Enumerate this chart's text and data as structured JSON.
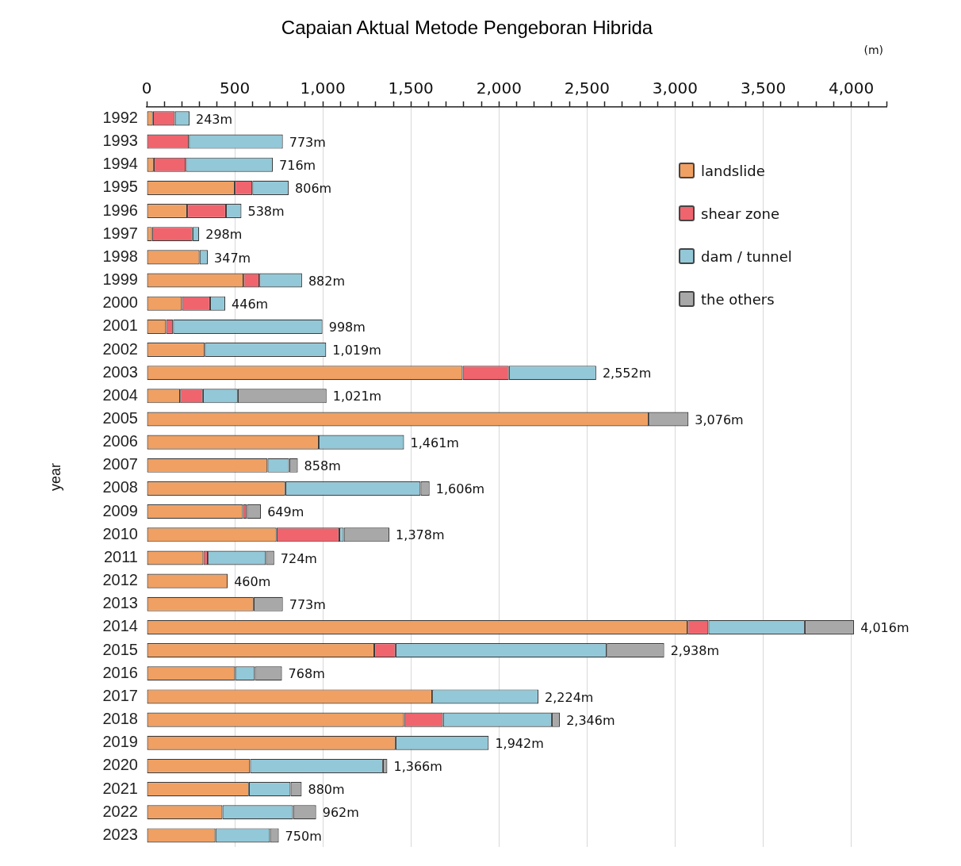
{
  "chart_data": {
    "type": "bar",
    "orientation": "horizontal",
    "stacked": true,
    "title": "Capaian Aktual Metode Pengeboran Hibrida",
    "xlabel": "(m)",
    "ylabel": "year",
    "categories": [
      "1992",
      "1993",
      "1994",
      "1995",
      "1996",
      "1997",
      "1998",
      "1999",
      "2000",
      "2001",
      "2002",
      "2003",
      "2004",
      "2005",
      "2006",
      "2007",
      "2008",
      "2009",
      "2010",
      "2011",
      "2012",
      "2013",
      "2014",
      "2015",
      "2016",
      "2017",
      "2018",
      "2019",
      "2020",
      "2021",
      "2022",
      "2023"
    ],
    "series": [
      {
        "name": "landslide",
        "color": "#f0a062",
        "values": [
          35,
          0,
          40,
          500,
          230,
          30,
          300,
          550,
          200,
          110,
          330,
          1794,
          190,
          2850,
          977,
          686,
          787,
          547,
          737,
          322,
          460,
          607,
          3071,
          1292,
          502,
          1621,
          1461,
          1413,
          587,
          580,
          430,
          390
        ]
      },
      {
        "name": "shear zone",
        "color": "#f0646e",
        "values": [
          125,
          240,
          182,
          100,
          220,
          230,
          0,
          90,
          160,
          40,
          0,
          262,
          129,
          0,
          0,
          0,
          0,
          22,
          357,
          25,
          0,
          0,
          118,
          121,
          0,
          0,
          221,
          0,
          0,
          0,
          0,
          0
        ]
      },
      {
        "name": "dam / tunnel",
        "color": "#92c8d8",
        "values": [
          83,
          533,
          494,
          206,
          88,
          38,
          47,
          242,
          86,
          848,
          689,
          496,
          198,
          0,
          484,
          123,
          768,
          0,
          25,
          330,
          0,
          0,
          547,
          1199,
          112,
          603,
          618,
          529,
          754,
          237,
          401,
          310
        ]
      },
      {
        "name": "the others",
        "color": "#a8a8a8",
        "values": [
          0,
          0,
          0,
          0,
          0,
          0,
          0,
          0,
          0,
          0,
          0,
          0,
          504,
          226,
          0,
          49,
          51,
          80,
          259,
          47,
          0,
          166,
          280,
          326,
          154,
          0,
          46,
          0,
          25,
          63,
          131,
          50
        ]
      }
    ],
    "totals": [
      "243m",
      "773m",
      "716m",
      "806m",
      "538m",
      "298m",
      "347m",
      "882m",
      "446m",
      "998m",
      "1,019m",
      "2,552m",
      "1,021m",
      "3,076m",
      "1,461m",
      "858m",
      "1,606m",
      "649m",
      "1,378m",
      "724m",
      "460m",
      "773m",
      "4,016m",
      "2,938m",
      "768m",
      "2,224m",
      "2,346m",
      "1,942m",
      "1,366m",
      "880m",
      "962m",
      "750m"
    ],
    "xlim": [
      0,
      4200
    ],
    "xticks": [
      0,
      {
        "value": 100,
        "label": null
      },
      {
        "value": 200,
        "label": null
      },
      {
        "value": 300,
        "label": null
      },
      {
        "value": 400,
        "label": null
      },
      500,
      {
        "value": 600,
        "label": null
      },
      {
        "value": 700,
        "label": null
      },
      {
        "value": 800,
        "label": null
      },
      {
        "value": 900,
        "label": null
      },
      {
        "value": 1000,
        "label": "1,000"
      },
      {
        "value": 1100,
        "label": null
      },
      {
        "value": 1200,
        "label": null
      },
      {
        "value": 1300,
        "label": null
      },
      {
        "value": 1400,
        "label": null
      },
      {
        "value": 1500,
        "label": "1,500"
      },
      {
        "value": 1600,
        "label": null
      },
      {
        "value": 1700,
        "label": null
      },
      {
        "value": 1800,
        "label": null
      },
      {
        "value": 1900,
        "label": null
      },
      {
        "value": 2000,
        "label": "2,000"
      },
      {
        "value": 2100,
        "label": null
      },
      {
        "value": 2200,
        "label": null
      },
      {
        "value": 2300,
        "label": null
      },
      {
        "value": 2400,
        "label": null
      },
      {
        "value": 2500,
        "label": "2,500"
      },
      {
        "value": 2600,
        "label": null
      },
      {
        "value": 2700,
        "label": null
      },
      {
        "value": 2800,
        "label": null
      },
      {
        "value": 2900,
        "label": null
      },
      {
        "value": 3000,
        "label": "3,000"
      },
      {
        "value": 3100,
        "label": null
      },
      {
        "value": 3200,
        "label": null
      },
      {
        "value": 3300,
        "label": null
      },
      {
        "value": 3400,
        "label": null
      },
      {
        "value": 3500,
        "label": "3,500"
      },
      {
        "value": 3600,
        "label": null
      },
      {
        "value": 3700,
        "label": null
      },
      {
        "value": 3800,
        "label": null
      },
      {
        "value": 3900,
        "label": null
      },
      {
        "value": 4000,
        "label": "4,000"
      },
      {
        "value": 4100,
        "label": null
      },
      {
        "value": 4200,
        "label": null
      }
    ],
    "grid": "x",
    "legend": "top right"
  }
}
